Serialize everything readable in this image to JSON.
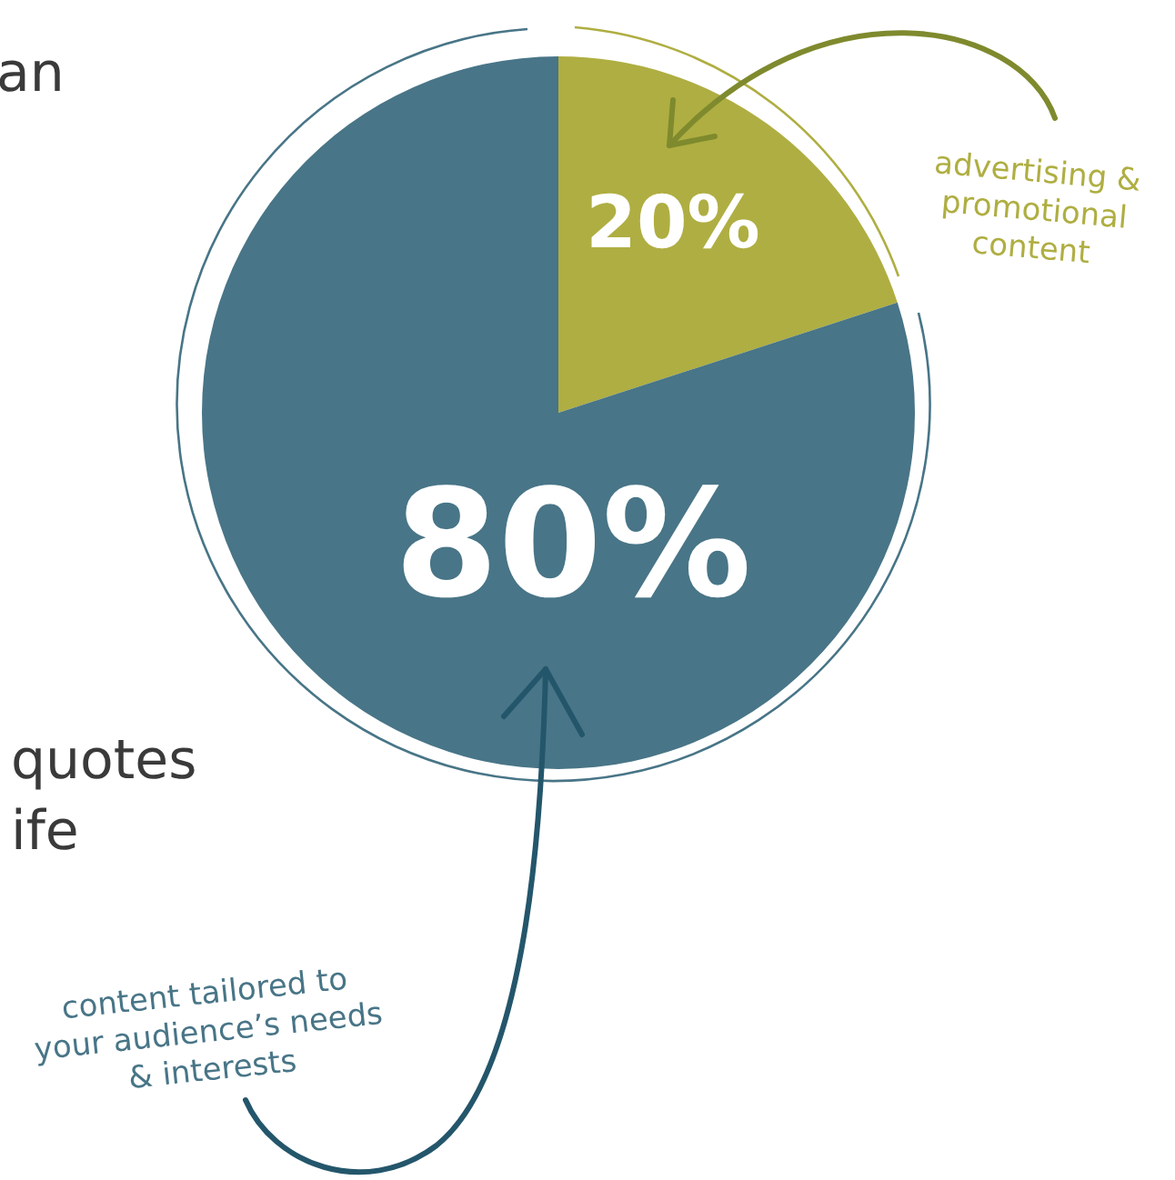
{
  "chart_data": {
    "type": "pie",
    "categories": [
      "advertising & promotional content",
      "content tailored to your audience’s needs & interests"
    ],
    "values": [
      20,
      80
    ],
    "colors": [
      "#afae42",
      "#487587"
    ],
    "value_labels": [
      "20%",
      "80%"
    ],
    "annotations": [
      "an",
      "quotes",
      "ife"
    ]
  }
}
